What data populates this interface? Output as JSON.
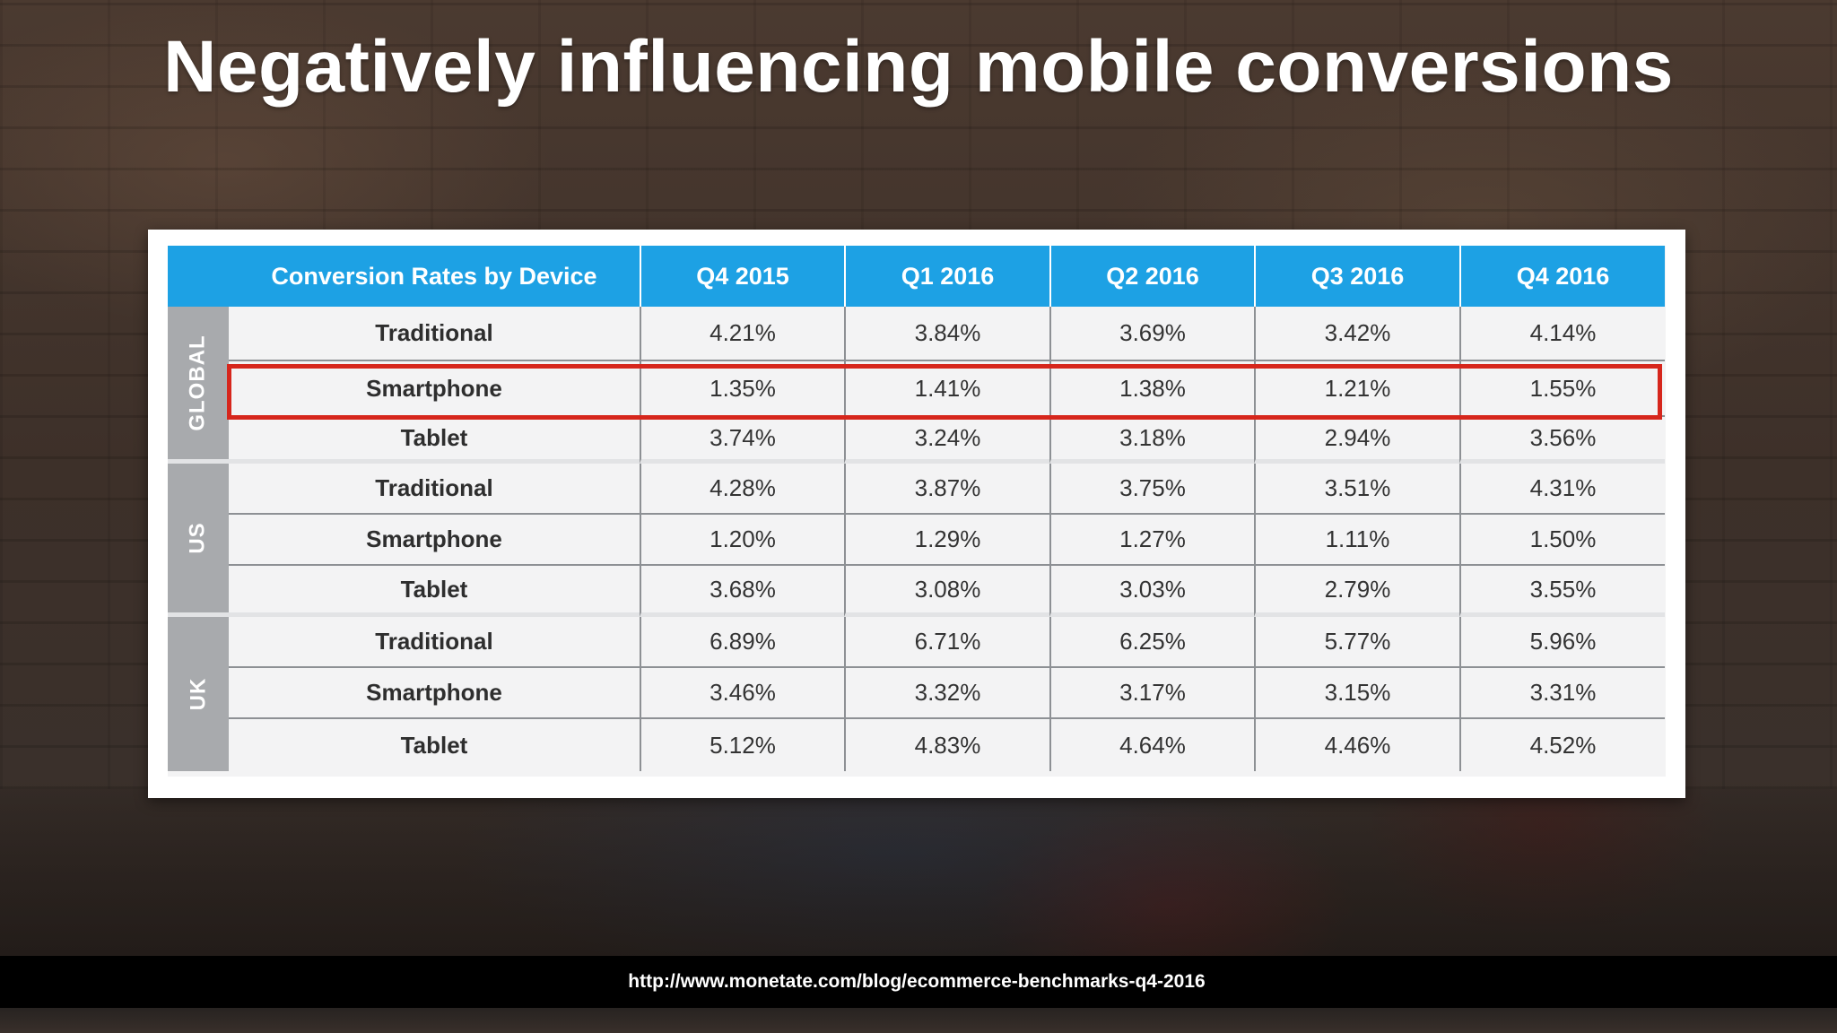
{
  "slide": {
    "title": "Negatively influencing mobile conversions",
    "source_url": "http://www.monetate.com/blog/ecommerce-benchmarks-q4-2016",
    "highlight_color": "#d6261c"
  },
  "table": {
    "header": {
      "title": "Conversion Rates by Device",
      "quarters": [
        "Q4 2015",
        "Q1 2016",
        "Q2 2016",
        "Q3 2016",
        "Q4 2016"
      ]
    },
    "colors": {
      "header_bg": "#1da1e4",
      "region_bg": "#a8aaad",
      "body_bg": "#f3f3f4"
    },
    "highlighted_row": {
      "region": "GLOBAL",
      "device": "Smartphone"
    },
    "regions": [
      {
        "name": "GLOBAL",
        "rows": [
          {
            "device": "Traditional",
            "values": [
              "4.21%",
              "3.84%",
              "3.69%",
              "3.42%",
              "4.14%"
            ]
          },
          {
            "device": "Smartphone",
            "values": [
              "1.35%",
              "1.41%",
              "1.38%",
              "1.21%",
              "1.55%"
            ]
          },
          {
            "device": "Tablet",
            "values": [
              "3.74%",
              "3.24%",
              "3.18%",
              "2.94%",
              "3.56%"
            ]
          }
        ]
      },
      {
        "name": "US",
        "rows": [
          {
            "device": "Traditional",
            "values": [
              "4.28%",
              "3.87%",
              "3.75%",
              "3.51%",
              "4.31%"
            ]
          },
          {
            "device": "Smartphone",
            "values": [
              "1.20%",
              "1.29%",
              "1.27%",
              "1.11%",
              "1.50%"
            ]
          },
          {
            "device": "Tablet",
            "values": [
              "3.68%",
              "3.08%",
              "3.03%",
              "2.79%",
              "3.55%"
            ]
          }
        ]
      },
      {
        "name": "UK",
        "rows": [
          {
            "device": "Traditional",
            "values": [
              "6.89%",
              "6.71%",
              "6.25%",
              "5.77%",
              "5.96%"
            ]
          },
          {
            "device": "Smartphone",
            "values": [
              "3.46%",
              "3.32%",
              "3.17%",
              "3.15%",
              "3.31%"
            ]
          },
          {
            "device": "Tablet",
            "values": [
              "5.12%",
              "4.83%",
              "4.64%",
              "4.46%",
              "4.52%"
            ]
          }
        ]
      }
    ]
  }
}
